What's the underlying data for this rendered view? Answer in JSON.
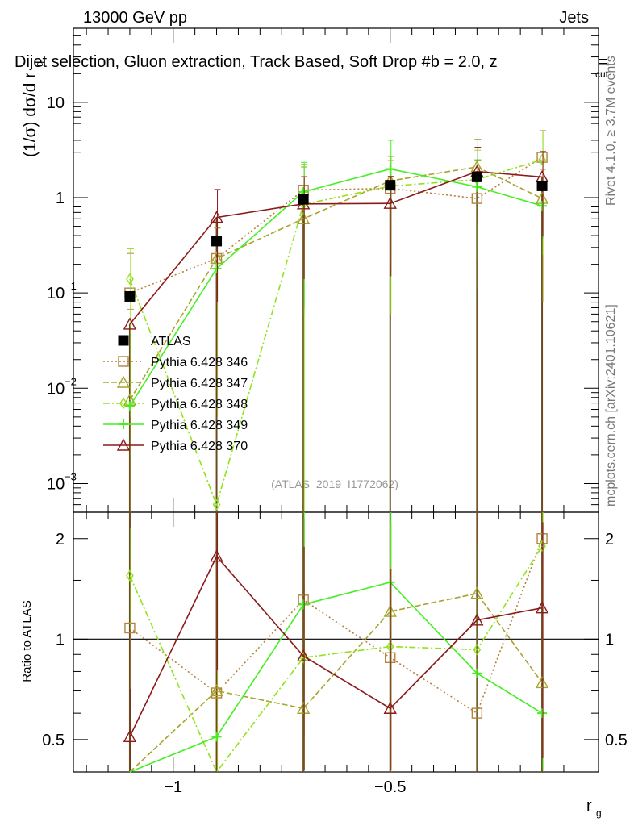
{
  "header": {
    "beam": "13000 GeV pp",
    "process": "Jets",
    "analysis_title": "Dijet selection, Gluon extraction, Track Based, Soft Drop #b = 2.0, z",
    "title_suffix": "cut =",
    "title_suffix_sub": "cut",
    "title_suffix_eq": "="
  },
  "side_labels": {
    "rivet": "Rivet 4.1.0, ≥ 3.7M events",
    "mcplots": "mcplots.cern.ch [arXiv:2401.10621]"
  },
  "watermark": "(ATLAS_2019_I1772062)",
  "chart_data": {
    "type": "line",
    "x": [
      -1.1,
      -0.9,
      -0.7,
      -0.5,
      -0.3,
      -0.15
    ],
    "xlabel": "r",
    "xlabel_sub": "g",
    "xlim": [
      -1.23,
      -0.02
    ],
    "x_ticks": [
      {
        "value": -1.0,
        "label": "−1"
      },
      {
        "value": -0.5,
        "label": "−0.5"
      }
    ],
    "main": {
      "ylabel": "(1/σ) dσ/d r",
      "ylabel_sub": "g",
      "yscale": "log",
      "ylim": [
        0.0005,
        60
      ],
      "y_ticks": [
        {
          "value": 0.001,
          "base": "10",
          "exp": "−3"
        },
        {
          "value": 0.01,
          "base": "10",
          "exp": "−2"
        },
        {
          "value": 0.1,
          "base": "10",
          "exp": "−1"
        },
        {
          "value": 1,
          "base": "1",
          "exp": ""
        },
        {
          "value": 10,
          "base": "10",
          "exp": ""
        }
      ]
    },
    "ratio": {
      "ylabel": "Ratio to ATLAS",
      "yscale": "log",
      "ylim": [
        0.4,
        2.4
      ],
      "y_ticks": [
        {
          "value": 0.5,
          "label": "0.5"
        },
        {
          "value": 1,
          "label": "1"
        },
        {
          "value": 2,
          "label": "2"
        }
      ]
    },
    "data": {
      "name": "ATLAS",
      "values": [
        0.092,
        0.35,
        0.96,
        1.35,
        1.65,
        1.33
      ],
      "err_up": [
        0.0,
        0.0,
        0.0,
        0.0,
        0.0,
        0.0
      ],
      "color": "#000000"
    },
    "series": [
      {
        "name": "Pythia 6.428 346",
        "color": "#b5813f",
        "dash": "2,3",
        "marker": "square",
        "values": [
          0.1,
          0.23,
          1.2,
          1.25,
          0.98,
          2.65
        ],
        "err_up": [
          0.16,
          0.25,
          0.9,
          1.2,
          1.5,
          2.4
        ],
        "ratio": [
          1.08,
          0.69,
          1.31,
          0.88,
          0.6,
          2.0
        ],
        "ratio_err": [
          0.9,
          0.75,
          1.0,
          1.0,
          1.6,
          0.4
        ]
      },
      {
        "name": "Pythia 6.428 347",
        "color": "#a8a42b",
        "dash": "7,3",
        "marker": "triangle",
        "values": [
          0.0075,
          0.23,
          0.6,
          1.5,
          2.1,
          0.98
        ],
        "err_up": [
          0.06,
          0.25,
          0.6,
          1.2,
          2.0,
          1.0
        ],
        "ratio": [
          0.08,
          0.7,
          0.62,
          1.21,
          1.37,
          0.74
        ],
        "ratio_err": [
          0.3,
          0.8,
          0.8,
          1.0,
          1.0,
          0.8
        ]
      },
      {
        "name": "Pythia 6.428 348",
        "color": "#8fe31c",
        "dash": "8,3,2,3",
        "marker": "diamond",
        "values": [
          0.14,
          0.0006,
          0.85,
          1.32,
          1.55,
          2.5
        ],
        "err_up": [
          0.15,
          0.0,
          1.4,
          1.4,
          1.6,
          2.5
        ],
        "ratio": [
          1.55,
          0.06,
          0.88,
          0.95,
          0.93,
          1.9
        ],
        "ratio_err": [
          0.6,
          0.0,
          1.4,
          1.3,
          1.0,
          0.5
        ]
      },
      {
        "name": "Pythia 6.428 349",
        "color": "#44ef22",
        "dash": "",
        "marker": "plus",
        "values": [
          0.0065,
          0.18,
          1.15,
          2.0,
          1.3,
          0.82
        ],
        "err_up": [
          0.0,
          0.0,
          1.2,
          2.0,
          1.2,
          0.5
        ],
        "ratio": [
          0.07,
          0.51,
          1.27,
          1.48,
          0.79,
          0.6
        ],
        "ratio_err": [
          0.0,
          0.0,
          1.3,
          1.0,
          1.0,
          0.4
        ]
      },
      {
        "name": "Pythia 6.428 370",
        "color": "#8b1a1a",
        "dash": "",
        "marker": "triangle",
        "values": [
          0.047,
          0.62,
          0.86,
          0.87,
          1.88,
          1.65
        ],
        "err_up": [
          0.0,
          0.6,
          0.8,
          0.8,
          1.5,
          1.4
        ],
        "ratio": [
          0.51,
          1.77,
          0.89,
          0.62,
          1.14,
          1.24
        ],
        "ratio_err": [
          0.2,
          1.2,
          1.0,
          1.0,
          1.2,
          1.0
        ]
      }
    ]
  }
}
